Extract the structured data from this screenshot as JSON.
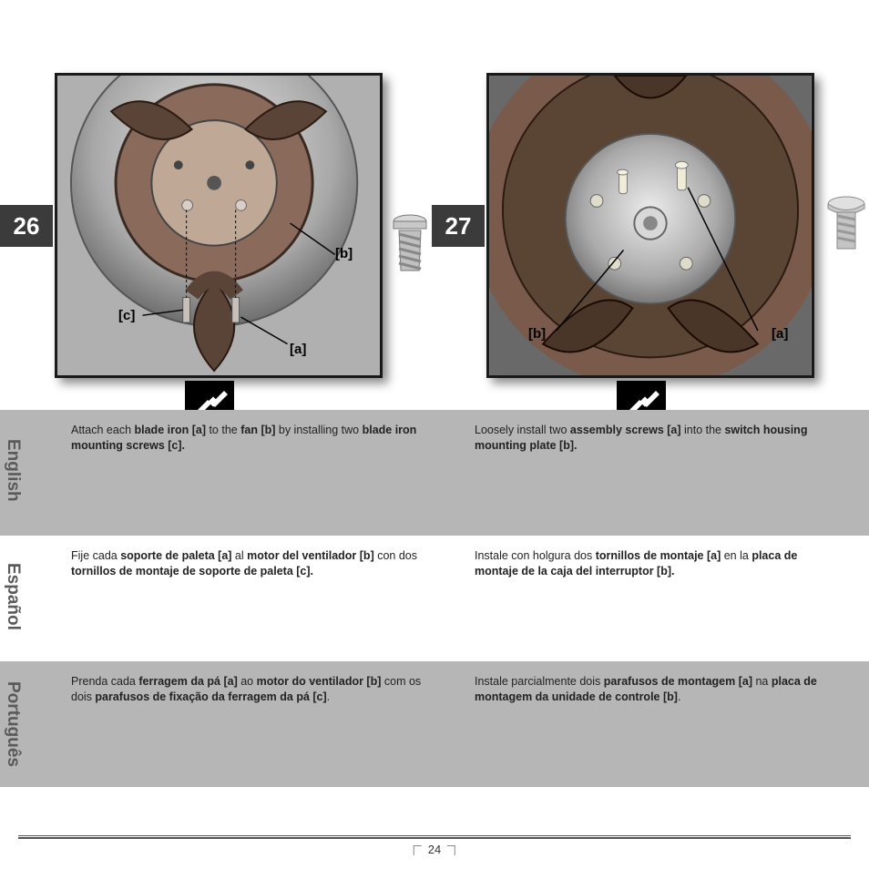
{
  "page_number": "24",
  "steps": {
    "left": {
      "number": "26",
      "callouts": {
        "a": "[a]",
        "b": "[b]",
        "c": "[c]"
      }
    },
    "right": {
      "number": "27",
      "callouts": {
        "a": "[a]",
        "b": "[b]"
      }
    }
  },
  "languages": {
    "english": {
      "label": "English",
      "left_html": "Attach each <b>blade iron [a]</b> to the <b>fan [b]</b> by installing two <b>blade iron mounting screws [c].</b>",
      "right_html": "Loosely install two <b>assembly screws [a]</b> into the <b>switch housing mounting plate [b].</b>"
    },
    "espanol": {
      "label": "Español",
      "left_html": "Fije cada <b>soporte de paleta [a]</b> al <b>motor del ventilador [b]</b> con dos <b>tornillos de montaje de soporte de paleta [c].</b>",
      "right_html": "Instale con holgura dos <b>tornillos de montaje [a]</b> en la <b>placa de montaje de la caja del interruptor [b].</b>"
    },
    "portugues": {
      "label": "Português",
      "left_html": "Prenda cada <b>ferragem da pá [a]</b> ao <b>motor do ventilador [b]</b> com os dois <b>parafusos de fixação da ferragem da pá [c]</b>.",
      "right_html": "Instale parcialmente dois <b>parafusos de montagem [a]</b> na <b>placa de montagem da unidade de controle [b]</b>."
    }
  },
  "colors": {
    "band_gray": "#b6b6b6",
    "step_bg": "#3b3b3b",
    "frame_border": "#1a1a1a",
    "frame_bg": "#b0b0b0"
  }
}
